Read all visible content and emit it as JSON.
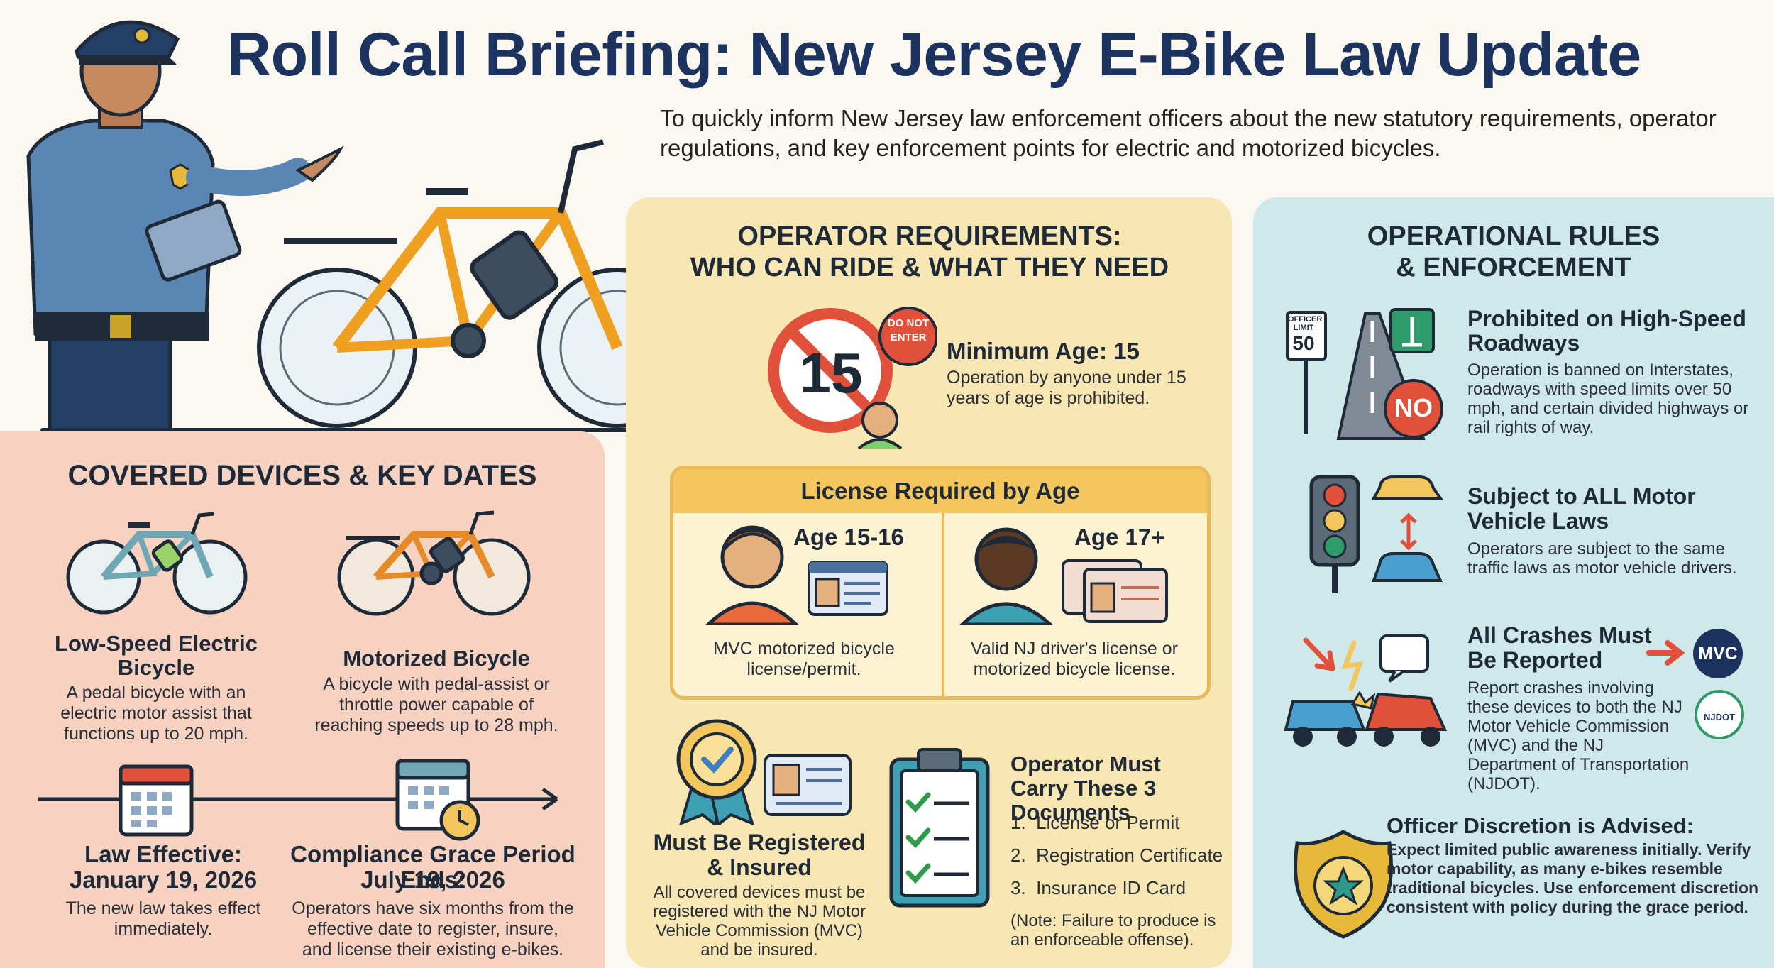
{
  "header": {
    "title": "Roll Call Briefing: New Jersey E-Bike Law Update",
    "subtitle": "To quickly inform New Jersey law enforcement officers about the new statutory requirements, operator regulations, and key enforcement points for electric and motorized bicycles."
  },
  "covered": {
    "title": "COVERED DEVICES & KEY DATES",
    "low_speed": {
      "name": "Low-Speed Electric Bicycle",
      "desc": "A pedal bicycle with an electric motor assist that functions up to 20 mph."
    },
    "motorized": {
      "name": "Motorized Bicycle",
      "desc": "A bicycle with pedal-assist or throttle power capable of reaching speeds up to 28 mph."
    },
    "effective": {
      "label": "Law Effective:",
      "date": "January 19, 2026",
      "desc": "The new law takes effect immediately."
    },
    "grace": {
      "label": "Compliance Grace Period Ends:",
      "date": "July 19, 2026",
      "desc": "Operators have six months from the effective date to register, insure, and license their existing e-bikes."
    }
  },
  "operator": {
    "title_line1": "OPERATOR REQUIREMENTS:",
    "title_line2": "WHO CAN RIDE & WHAT THEY NEED",
    "sign_number": "15",
    "do_not_enter": "DO NOT ENTER",
    "min_age_title": "Minimum Age: 15",
    "min_age_desc": "Operation by anyone under 15 years of age is prohibited.",
    "license": {
      "header": "License Required by Age",
      "young": {
        "age": "Age 15-16",
        "desc": "MVC motorized bicycle license/permit."
      },
      "adult": {
        "age": "Age 17+",
        "desc": "Valid NJ driver's license or motorized bicycle license."
      }
    },
    "registered": {
      "title": "Must Be Registered & Insured",
      "desc": "All covered devices must be registered with the NJ Motor Vehicle Commission (MVC) and be insured."
    },
    "documents": {
      "title": "Operator Must Carry These 3 Documents",
      "items": [
        "License or Permit",
        "Registration Certificate",
        "Insurance ID Card"
      ],
      "note": "(Note: Failure to produce is an enforceable offense)."
    }
  },
  "rules": {
    "title_line1": "OPERATIONAL RULES",
    "title_line2": "& ENFORCEMENT",
    "highways": {
      "title": "Prohibited on High-Speed Roadways",
      "desc": "Operation is banned on Interstates, roadways with speed limits over 50 mph, and certain divided highways or rail rights of way.",
      "sign_top": "OFFICER LIMIT",
      "sign_num": "50",
      "no": "NO"
    },
    "laws": {
      "title": "Subject to ALL Motor Vehicle Laws",
      "desc": "Operators are subject to the same traffic laws as motor vehicle drivers."
    },
    "crashes": {
      "title": "All Crashes Must Be Reported",
      "desc": "Report crashes involving these devices to both the NJ Motor Vehicle Commission (MVC) and the NJ Department of Transportation (NJDOT).",
      "mvc": "MVC",
      "njdot": "NJDOT"
    },
    "discretion": {
      "title": "Officer Discretion is Advised:",
      "desc": "Expect limited public awareness initially. Verify motor capability, as many e-bikes resemble traditional bicycles. Use enforcement discretion consistent with policy during the grace period."
    }
  },
  "colors": {
    "navy": "#1c3360",
    "left_panel": "#f8d2c1",
    "mid_panel": "#f8e6b3",
    "right_panel": "#cfe8ea",
    "accent_red": "#e0503a",
    "accent_gold": "#eab95a"
  }
}
